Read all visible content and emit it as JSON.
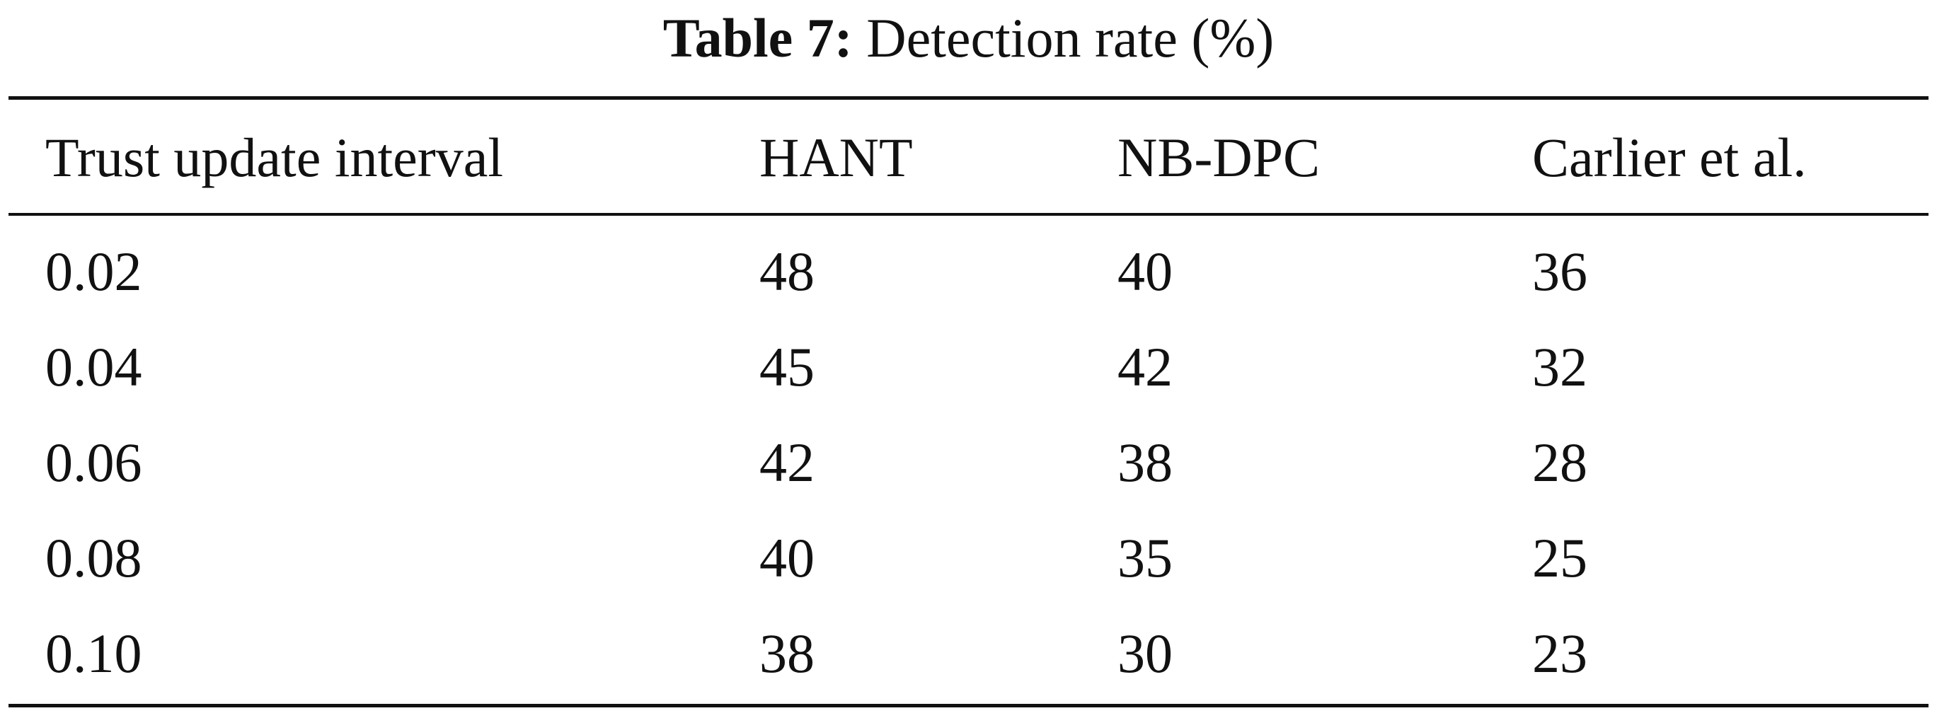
{
  "caption": {
    "label": "Table 7:",
    "text": "Detection rate (%)"
  },
  "table": {
    "headers": [
      "Trust update interval",
      "HANT",
      "NB-DPC",
      "Carlier et al."
    ],
    "rows": [
      [
        "0.02",
        "48",
        "40",
        "36"
      ],
      [
        "0.04",
        "45",
        "42",
        "32"
      ],
      [
        "0.06",
        "42",
        "38",
        "28"
      ],
      [
        "0.08",
        "40",
        "35",
        "25"
      ],
      [
        "0.10",
        "38",
        "30",
        "23"
      ]
    ]
  }
}
